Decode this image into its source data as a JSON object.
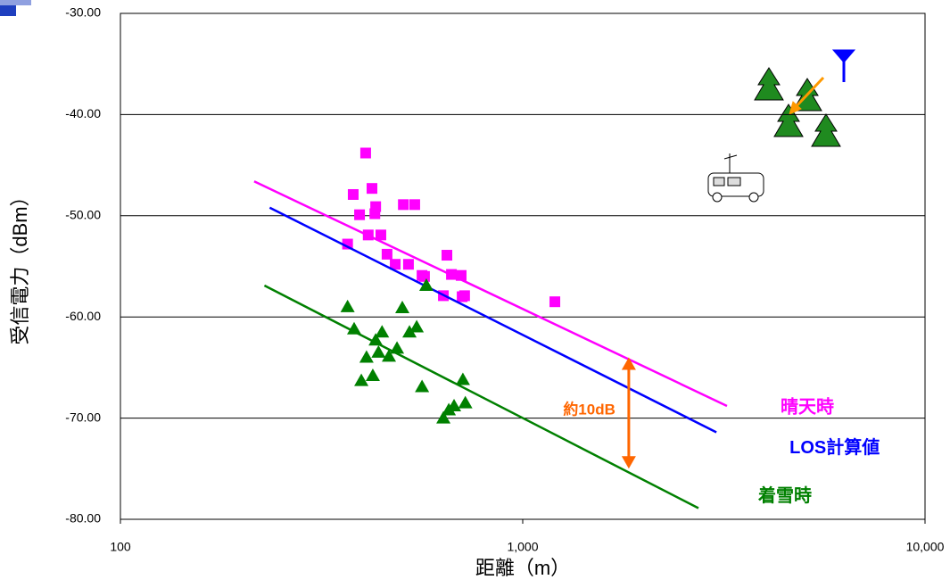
{
  "chart_data": {
    "type": "scatter",
    "x_label": "距離（m）",
    "y_label": "受信電力（dBm）",
    "xlog": true,
    "xlim": [
      100,
      10000
    ],
    "xticks": [
      100,
      {
        "value": 1000,
        "label": "1,000"
      },
      {
        "value": 10000,
        "label": "10,000"
      }
    ],
    "ylim": [
      -80,
      -30
    ],
    "yticks": [
      {
        "value": -30,
        "label": "-30.00"
      },
      {
        "value": -40,
        "label": "-40.00"
      },
      {
        "value": -50,
        "label": "-50.00"
      },
      {
        "value": -60,
        "label": "-60.00"
      },
      {
        "value": -70,
        "label": "-70.00"
      },
      {
        "value": -80,
        "label": "-80.00"
      }
    ],
    "grid": true,
    "series": [
      {
        "name": "晴天時",
        "color": "#ff00ff",
        "marker": "square",
        "x": [
          367,
          379,
          393,
          407,
          413,
          422,
          429,
          431,
          444,
          460,
          482,
          505,
          520,
          539,
          570,
          562,
          648,
          665,
          703,
          707,
          717,
          635,
          1202
        ],
        "values": [
          -52.8,
          -47.9,
          -49.9,
          -43.8,
          -51.9,
          -47.3,
          -49.8,
          -49.1,
          -51.9,
          -53.8,
          -54.8,
          -48.9,
          -54.8,
          -48.9,
          -56.0,
          -55.9,
          -53.9,
          -55.8,
          -55.9,
          -58.0,
          -57.9,
          -57.9,
          -58.5
        ],
        "fit": {
          "x": [
            215,
            3219
          ],
          "values": [
            -46.6,
            -68.8
          ]
        }
      },
      {
        "name": "LOS計算値",
        "color": "#0000ff",
        "fit": {
          "x": [
            235,
            3030
          ],
          "values": [
            -49.2,
            -71.4
          ]
        }
      },
      {
        "name": "着雪時",
        "color": "#008000",
        "marker": "triangle",
        "x": [
          367,
          381,
          397,
          409,
          424,
          431,
          438,
          447,
          465,
          487,
          502,
          523,
          545,
          562,
          576,
          635,
          655,
          675,
          710,
          720
        ],
        "values": [
          -59.0,
          -61.2,
          -66.3,
          -64.0,
          -65.8,
          -62.3,
          -63.5,
          -61.5,
          -63.9,
          -63.1,
          -59.1,
          -61.5,
          -61.0,
          -66.9,
          -56.9,
          -70.0,
          -69.2,
          -68.8,
          -66.2,
          -68.5
        ],
        "fit": {
          "x": [
            228,
            2734
          ],
          "values": [
            -56.9,
            -78.9
          ]
        }
      }
    ],
    "annotation": {
      "text": "約10dB",
      "color": "#ff6600",
      "x": 1835,
      "y": [
        -64.0,
        -75.0
      ]
    }
  }
}
